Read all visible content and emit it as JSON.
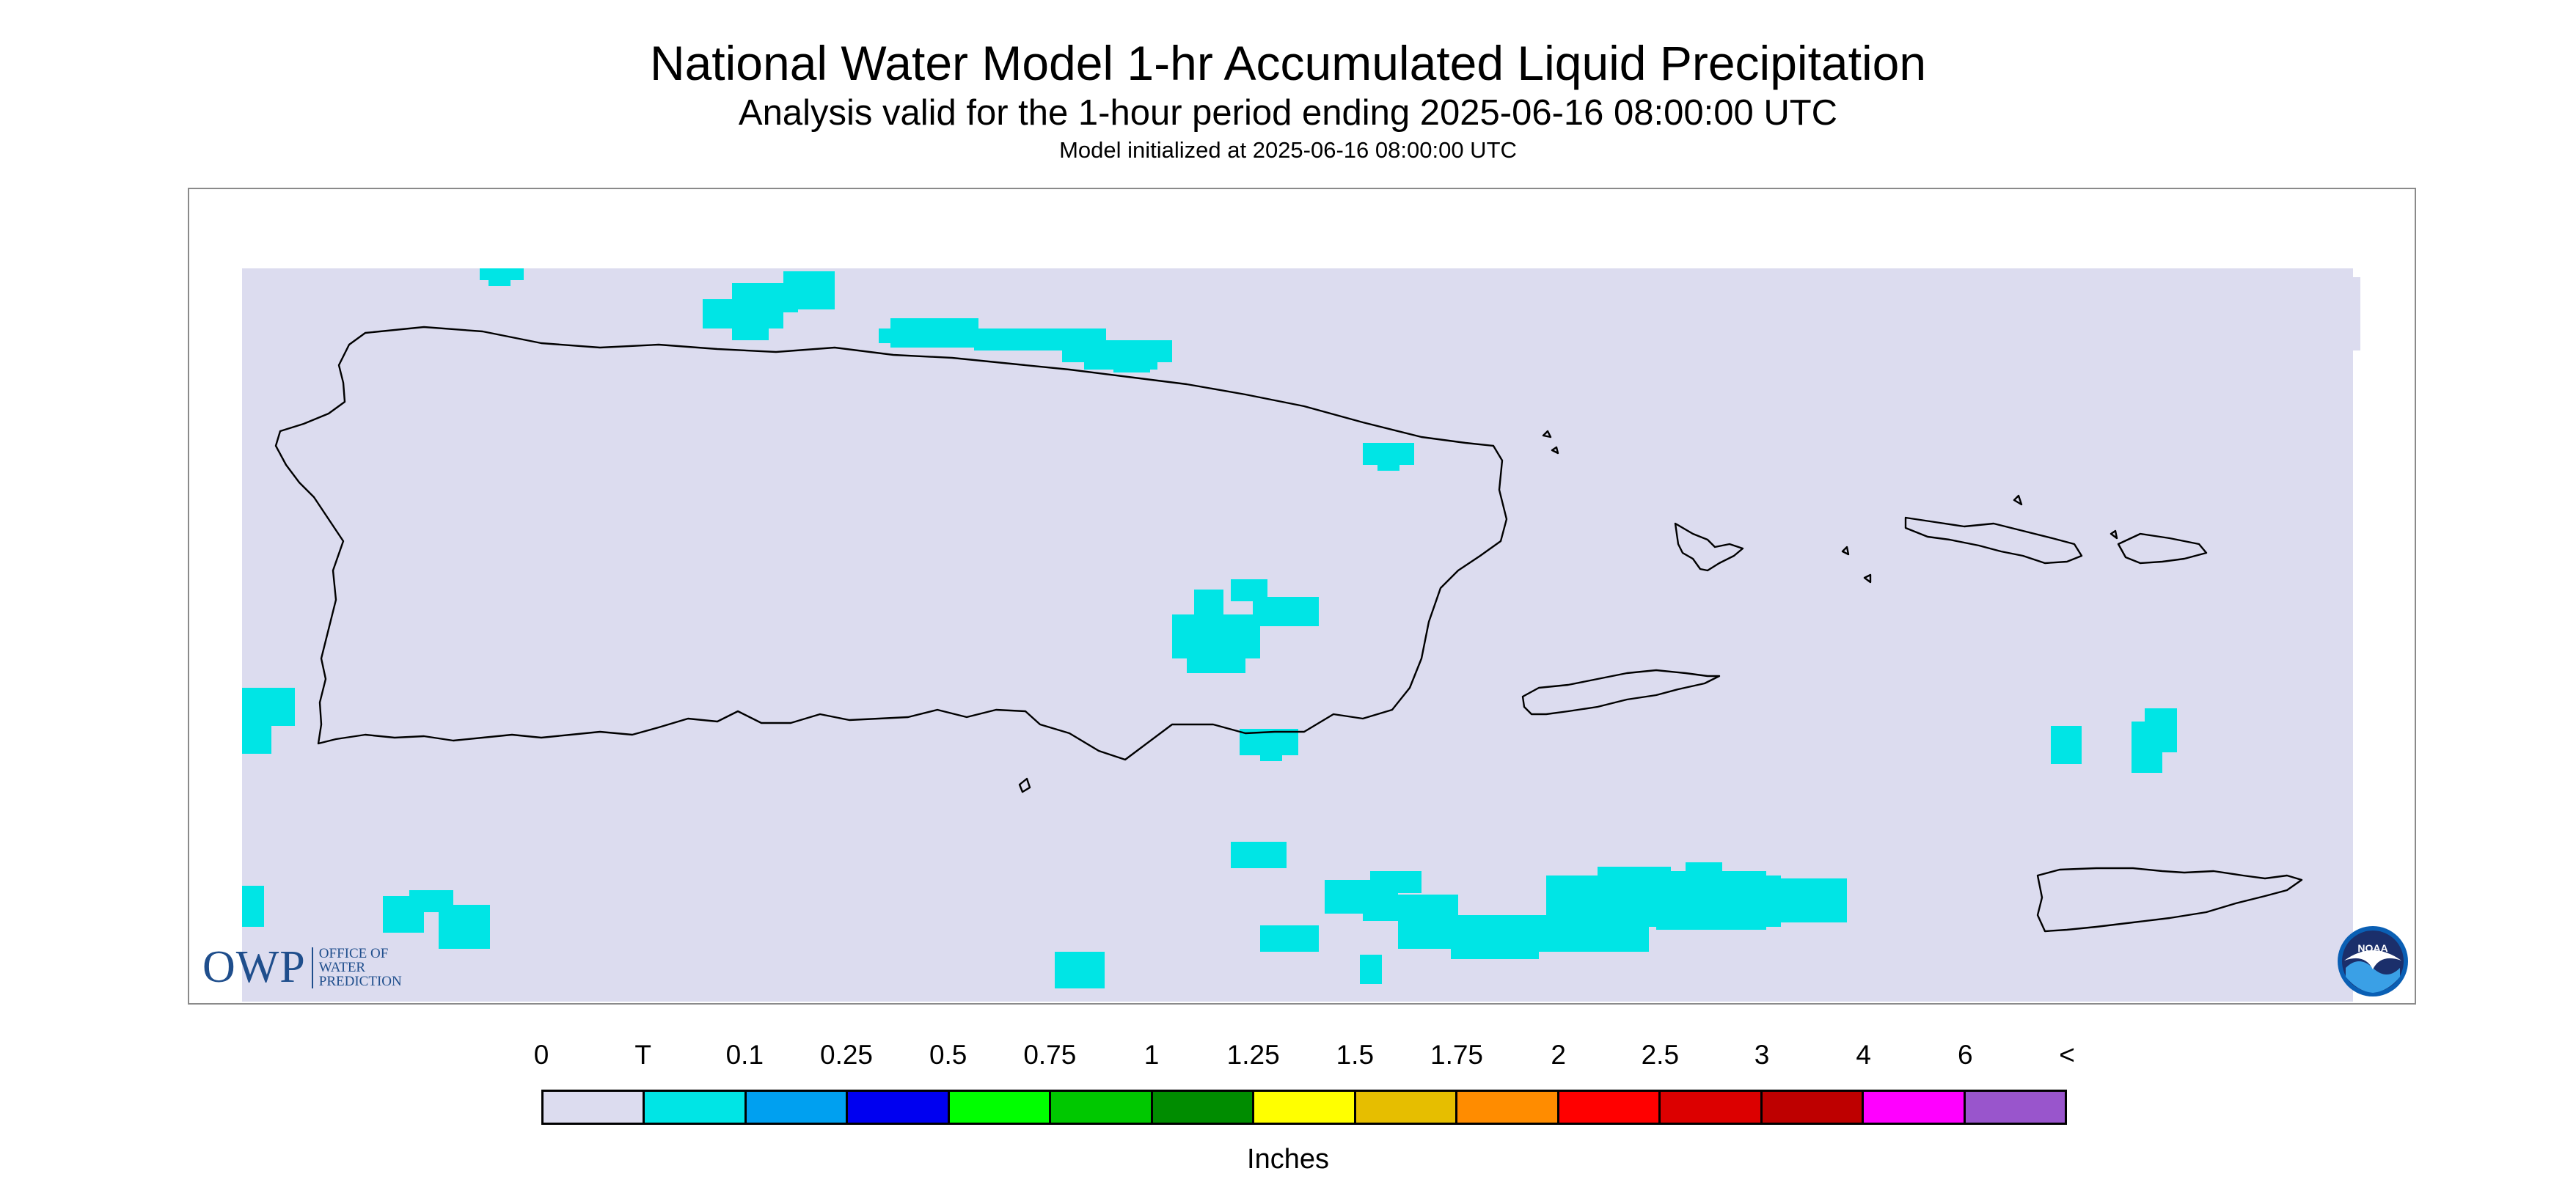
{
  "header": {
    "title": "National Water Model 1-hr Accumulated Liquid Precipitation",
    "subtitle": "Analysis valid for the 1-hour period ending 2025-06-16 08:00:00 UTC",
    "init_line": "Model initialized at 2025-06-16 08:00:00 UTC"
  },
  "map": {
    "region_fill_color": "#dcdcef",
    "coastline_color": "#000000",
    "precip_color": "#00e5e5"
  },
  "legend": {
    "labels": [
      "0",
      "T",
      "0.1",
      "0.25",
      "0.5",
      "0.75",
      "1",
      "1.25",
      "1.5",
      "1.75",
      "2",
      "2.5",
      "3",
      "4",
      "6",
      "<"
    ],
    "colors": [
      "#dcdcef",
      "#00e5e5",
      "#00a0f0",
      "#0000f0",
      "#00ff00",
      "#00c800",
      "#008c00",
      "#ffff00",
      "#e6be00",
      "#ff8c00",
      "#ff0000",
      "#dc0000",
      "#be0000",
      "#ff00ff",
      "#9955cc"
    ],
    "units": "Inches"
  },
  "logos": {
    "owp_letters": "OWP",
    "owp_text": [
      "OFFICE OF",
      "WATER",
      "PREDICTION"
    ],
    "noaa_text": "NOAA"
  }
}
